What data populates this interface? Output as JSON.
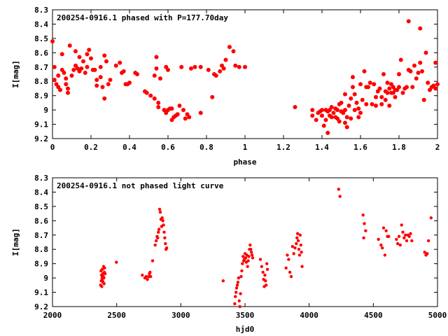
{
  "chart_data": [
    {
      "type": "scatter",
      "title": "200254-0916.1 phased with P=177.70day",
      "xlabel": "phase",
      "ylabel": "I[mag]",
      "xlim": [
        0,
        2
      ],
      "ylim": [
        8.3,
        9.2
      ],
      "y_inverted": true,
      "grid": false,
      "marker": "filled-circle",
      "color": "#ff0000",
      "x_ticks": [
        "0",
        "0.2",
        "0.4",
        "0.6",
        "0.8",
        "1",
        "1.2",
        "1.4",
        "1.6",
        "1.8",
        "2"
      ],
      "y_ticks": [
        "8.3",
        "8.4",
        "8.5",
        "8.6",
        "8.7",
        "8.8",
        "8.9",
        "9",
        "9.1",
        "9.2"
      ],
      "points": [
        [
          0.0,
          8.52
        ],
        [
          0.01,
          8.79
        ],
        [
          0.01,
          8.7
        ],
        [
          0.02,
          8.82
        ],
        [
          0.03,
          8.76
        ],
        [
          0.03,
          8.84
        ],
        [
          0.04,
          8.86
        ],
        [
          0.05,
          8.61
        ],
        [
          0.05,
          8.72
        ],
        [
          0.06,
          8.74
        ],
        [
          0.07,
          8.78
        ],
        [
          0.07,
          8.82
        ],
        [
          0.08,
          8.88
        ],
        [
          0.08,
          8.85
        ],
        [
          0.09,
          8.55
        ],
        [
          0.1,
          8.76
        ],
        [
          0.11,
          8.72
        ],
        [
          0.12,
          8.59
        ],
        [
          0.12,
          8.69
        ],
        [
          0.13,
          8.71
        ],
        [
          0.14,
          8.63
        ],
        [
          0.14,
          8.73
        ],
        [
          0.15,
          8.71
        ],
        [
          0.16,
          8.66
        ],
        [
          0.17,
          8.74
        ],
        [
          0.18,
          8.7
        ],
        [
          0.18,
          8.61
        ],
        [
          0.19,
          8.58
        ],
        [
          0.2,
          8.64
        ],
        [
          0.21,
          8.72
        ],
        [
          0.22,
          8.72
        ],
        [
          0.23,
          8.79
        ],
        [
          0.23,
          8.83
        ],
        [
          0.25,
          8.7
        ],
        [
          0.25,
          8.77
        ],
        [
          0.26,
          8.84
        ],
        [
          0.27,
          8.92
        ],
        [
          0.27,
          8.62
        ],
        [
          0.28,
          8.66
        ],
        [
          0.29,
          8.82
        ],
        [
          0.3,
          8.79
        ],
        [
          0.33,
          8.69
        ],
        [
          0.35,
          8.67
        ],
        [
          0.36,
          8.74
        ],
        [
          0.37,
          8.73
        ],
        [
          0.38,
          8.82
        ],
        [
          0.39,
          8.82
        ],
        [
          0.4,
          8.81
        ],
        [
          0.43,
          8.74
        ],
        [
          0.44,
          8.75
        ],
        [
          0.48,
          8.87
        ],
        [
          0.49,
          8.88
        ],
        [
          0.51,
          8.9
        ],
        [
          0.53,
          8.92
        ],
        [
          0.53,
          8.76
        ],
        [
          0.54,
          8.71
        ],
        [
          0.54,
          8.63
        ],
        [
          0.55,
          8.95
        ],
        [
          0.55,
          8.98
        ],
        [
          0.56,
          8.78
        ],
        [
          0.58,
          9.0
        ],
        [
          0.59,
          8.7
        ],
        [
          0.59,
          9.02
        ],
        [
          0.6,
          8.72
        ],
        [
          0.6,
          9.0
        ],
        [
          0.61,
          8.99
        ],
        [
          0.62,
          9.07
        ],
        [
          0.62,
          8.99
        ],
        [
          0.63,
          9.05
        ],
        [
          0.64,
          9.04
        ],
        [
          0.65,
          9.03
        ],
        [
          0.66,
          8.97
        ],
        [
          0.67,
          8.7
        ],
        [
          0.68,
          9.0
        ],
        [
          0.69,
          9.06
        ],
        [
          0.7,
          9.03
        ],
        [
          0.71,
          9.05
        ],
        [
          0.72,
          8.71
        ],
        [
          0.74,
          8.7
        ],
        [
          0.77,
          8.7
        ],
        [
          0.77,
          9.02
        ],
        [
          0.81,
          8.72
        ],
        [
          0.83,
          8.91
        ],
        [
          0.84,
          8.75
        ],
        [
          0.85,
          8.76
        ],
        [
          0.87,
          8.73
        ],
        [
          0.88,
          8.69
        ],
        [
          0.89,
          8.71
        ],
        [
          0.9,
          8.65
        ],
        [
          0.92,
          8.56
        ],
        [
          0.94,
          8.59
        ],
        [
          0.95,
          8.69
        ],
        [
          0.97,
          8.7
        ],
        [
          1.0,
          8.7
        ],
        [
          1.26,
          8.98
        ],
        [
          1.35,
          9.0
        ],
        [
          1.35,
          9.04
        ],
        [
          1.37,
          9.07
        ],
        [
          1.38,
          9.02
        ],
        [
          1.39,
          9.01
        ],
        [
          1.4,
          9.0
        ],
        [
          1.4,
          9.04
        ],
        [
          1.41,
          9.11
        ],
        [
          1.42,
          9.0
        ],
        [
          1.42,
          9.07
        ],
        [
          1.43,
          9.01
        ],
        [
          1.43,
          9.16
        ],
        [
          1.44,
          9.0
        ],
        [
          1.44,
          9.04
        ],
        [
          1.45,
          9.05
        ],
        [
          1.45,
          8.98
        ],
        [
          1.46,
          9.02
        ],
        [
          1.47,
          8.99
        ],
        [
          1.47,
          9.05
        ],
        [
          1.48,
          9.0
        ],
        [
          1.48,
          9.06
        ],
        [
          1.49,
          9.08
        ],
        [
          1.49,
          8.96
        ],
        [
          1.5,
          9.01
        ],
        [
          1.5,
          8.95
        ],
        [
          1.51,
          9.02
        ],
        [
          1.52,
          8.89
        ],
        [
          1.52,
          9.09
        ],
        [
          1.52,
          9.0
        ],
        [
          1.53,
          9.05
        ],
        [
          1.53,
          9.12
        ],
        [
          1.54,
          8.97
        ],
        [
          1.55,
          9.06
        ],
        [
          1.55,
          8.92
        ],
        [
          1.56,
          8.84
        ],
        [
          1.56,
          8.77
        ],
        [
          1.57,
          9.0
        ],
        [
          1.57,
          8.89
        ],
        [
          1.58,
          8.95
        ],
        [
          1.59,
          9.05
        ],
        [
          1.59,
          8.99
        ],
        [
          1.6,
          8.82
        ],
        [
          1.6,
          9.02
        ],
        [
          1.61,
          8.93
        ],
        [
          1.62,
          8.73
        ],
        [
          1.63,
          8.84
        ],
        [
          1.63,
          8.96
        ],
        [
          1.64,
          8.84
        ],
        [
          1.65,
          8.81
        ],
        [
          1.66,
          8.96
        ],
        [
          1.67,
          8.82
        ],
        [
          1.68,
          8.91
        ],
        [
          1.68,
          8.97
        ],
        [
          1.69,
          8.87
        ],
        [
          1.7,
          8.85
        ],
        [
          1.71,
          8.96
        ],
        [
          1.71,
          8.91
        ],
        [
          1.72,
          8.75
        ],
        [
          1.73,
          8.87
        ],
        [
          1.73,
          8.93
        ],
        [
          1.74,
          8.88
        ],
        [
          1.74,
          8.81
        ],
        [
          1.75,
          8.97
        ],
        [
          1.75,
          8.85
        ],
        [
          1.76,
          8.88
        ],
        [
          1.76,
          8.82
        ],
        [
          1.77,
          8.84
        ],
        [
          1.77,
          8.88
        ],
        [
          1.78,
          8.91
        ],
        [
          1.78,
          8.86
        ],
        [
          1.79,
          8.86
        ],
        [
          1.8,
          8.75
        ],
        [
          1.8,
          8.84
        ],
        [
          1.81,
          8.65
        ],
        [
          1.82,
          8.88
        ],
        [
          1.83,
          8.85
        ],
        [
          1.84,
          8.84
        ],
        [
          1.85,
          8.72
        ],
        [
          1.85,
          8.38
        ],
        [
          1.86,
          8.73
        ],
        [
          1.87,
          8.84
        ],
        [
          1.88,
          8.69
        ],
        [
          1.89,
          8.78
        ],
        [
          1.9,
          8.74
        ],
        [
          1.91,
          8.67
        ],
        [
          1.91,
          8.43
        ],
        [
          1.92,
          8.73
        ],
        [
          1.93,
          8.93
        ],
        [
          1.94,
          8.6
        ],
        [
          1.95,
          8.81
        ],
        [
          1.96,
          8.86
        ],
        [
          1.97,
          8.84
        ],
        [
          1.98,
          8.83
        ],
        [
          1.99,
          8.85
        ],
        [
          1.99,
          8.67
        ],
        [
          2.0,
          8.82
        ]
      ]
    },
    {
      "type": "scatter",
      "title": "200254-0916.1 not phased light curve",
      "xlabel": "hjd0",
      "ylabel": "I[mag]",
      "xlim": [
        2000,
        5000
      ],
      "ylim": [
        8.3,
        9.2
      ],
      "y_inverted": true,
      "grid": false,
      "marker": "filled-circle",
      "color": "#ff0000",
      "x_ticks": [
        "2000",
        "2500",
        "3000",
        "3500",
        "4000",
        "4500",
        "5000"
      ],
      "y_ticks": [
        "8.3",
        "8.4",
        "8.5",
        "8.6",
        "8.7",
        "8.8",
        "8.9",
        "9",
        "9.1",
        "9.2"
      ],
      "points": [
        [
          2375,
          9.05
        ],
        [
          2378,
          8.95
        ],
        [
          2380,
          9.02
        ],
        [
          2382,
          8.98
        ],
        [
          2384,
          9.06
        ],
        [
          2386,
          9.0
        ],
        [
          2388,
          8.94
        ],
        [
          2390,
          9.02
        ],
        [
          2392,
          8.97
        ],
        [
          2394,
          9.03
        ],
        [
          2396,
          8.99
        ],
        [
          2398,
          8.92
        ],
        [
          2400,
          9.0
        ],
        [
          2402,
          9.04
        ],
        [
          2404,
          8.96
        ],
        [
          2406,
          8.93
        ],
        [
          2410,
          8.97
        ],
        [
          2498,
          8.89
        ],
        [
          2700,
          8.98
        ],
        [
          2720,
          9.0
        ],
        [
          2730,
          8.99
        ],
        [
          2740,
          9.01
        ],
        [
          2750,
          8.99
        ],
        [
          2755,
          8.97
        ],
        [
          2760,
          8.96
        ],
        [
          2765,
          8.99
        ],
        [
          2780,
          8.88
        ],
        [
          2800,
          8.77
        ],
        [
          2808,
          8.74
        ],
        [
          2815,
          8.71
        ],
        [
          2820,
          8.72
        ],
        [
          2825,
          8.68
        ],
        [
          2830,
          8.66
        ],
        [
          2835,
          8.52
        ],
        [
          2840,
          8.54
        ],
        [
          2845,
          8.59
        ],
        [
          2850,
          8.64
        ],
        [
          2855,
          8.58
        ],
        [
          2860,
          8.6
        ],
        [
          2865,
          8.63
        ],
        [
          2870,
          8.68
        ],
        [
          2875,
          8.72
        ],
        [
          2880,
          8.76
        ],
        [
          2885,
          8.8
        ],
        [
          2890,
          8.79
        ],
        [
          3330,
          9.02
        ],
        [
          3420,
          9.18
        ],
        [
          3425,
          9.13
        ],
        [
          3430,
          9.1
        ],
        [
          3435,
          9.07
        ],
        [
          3440,
          9.05
        ],
        [
          3445,
          9.03
        ],
        [
          3450,
          9.0
        ],
        [
          3455,
          9.16
        ],
        [
          3460,
          9.2
        ],
        [
          3465,
          9.11
        ],
        [
          3470,
          8.99
        ],
        [
          3475,
          8.95
        ],
        [
          3480,
          8.9
        ],
        [
          3485,
          8.85
        ],
        [
          3490,
          8.88
        ],
        [
          3495,
          8.87
        ],
        [
          3500,
          8.83
        ],
        [
          3505,
          8.86
        ],
        [
          3510,
          8.89
        ],
        [
          3515,
          8.84
        ],
        [
          3520,
          8.92
        ],
        [
          3525,
          8.88
        ],
        [
          3530,
          8.85
        ],
        [
          3535,
          8.8
        ],
        [
          3540,
          8.77
        ],
        [
          3545,
          8.8
        ],
        [
          3550,
          8.82
        ],
        [
          3555,
          8.84
        ],
        [
          3560,
          8.86
        ],
        [
          3620,
          8.87
        ],
        [
          3630,
          8.92
        ],
        [
          3640,
          8.96
        ],
        [
          3645,
          9.01
        ],
        [
          3650,
          9.06
        ],
        [
          3655,
          8.98
        ],
        [
          3660,
          9.02
        ],
        [
          3665,
          9.05
        ],
        [
          3670,
          8.9
        ],
        [
          3675,
          8.94
        ],
        [
          3820,
          8.93
        ],
        [
          3830,
          8.84
        ],
        [
          3840,
          8.87
        ],
        [
          3850,
          8.96
        ],
        [
          3860,
          8.99
        ],
        [
          3870,
          8.78
        ],
        [
          3880,
          8.83
        ],
        [
          3890,
          8.79
        ],
        [
          3900,
          8.76
        ],
        [
          3905,
          8.72
        ],
        [
          3910,
          8.69
        ],
        [
          3915,
          8.74
        ],
        [
          3920,
          8.8
        ],
        [
          3925,
          8.84
        ],
        [
          3930,
          8.7
        ],
        [
          3935,
          8.77
        ],
        [
          3940,
          8.82
        ],
        [
          3945,
          8.92
        ],
        [
          4230,
          8.38
        ],
        [
          4240,
          8.43
        ],
        [
          4420,
          8.56
        ],
        [
          4430,
          8.62
        ],
        [
          4440,
          8.67
        ],
        [
          4425,
          8.72
        ],
        [
          4540,
          8.73
        ],
        [
          4560,
          8.77
        ],
        [
          4570,
          8.79
        ],
        [
          4580,
          8.65
        ],
        [
          4590,
          8.84
        ],
        [
          4600,
          8.67
        ],
        [
          4610,
          8.71
        ],
        [
          4620,
          8.71
        ],
        [
          4680,
          8.73
        ],
        [
          4690,
          8.76
        ],
        [
          4700,
          8.71
        ],
        [
          4710,
          8.77
        ],
        [
          4720,
          8.63
        ],
        [
          4730,
          8.68
        ],
        [
          4740,
          8.72
        ],
        [
          4750,
          8.7
        ],
        [
          4760,
          8.74
        ],
        [
          4770,
          8.7
        ],
        [
          4780,
          8.71
        ],
        [
          4790,
          8.69
        ],
        [
          4800,
          8.74
        ],
        [
          4900,
          8.82
        ],
        [
          4910,
          8.84
        ],
        [
          4920,
          8.83
        ],
        [
          4930,
          8.74
        ],
        [
          4950,
          8.58
        ]
      ]
    }
  ]
}
